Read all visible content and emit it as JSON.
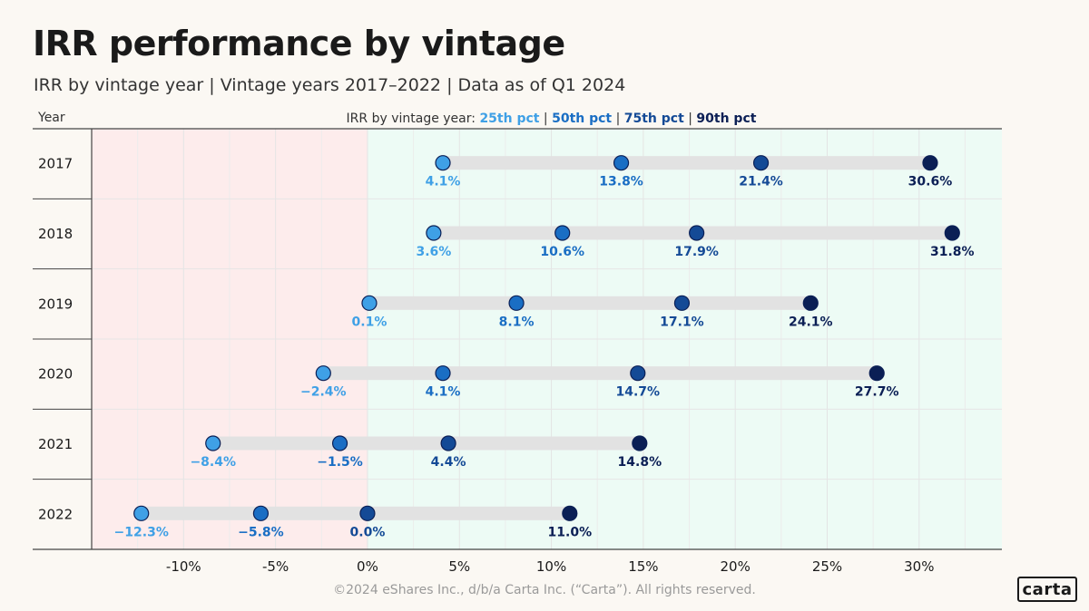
{
  "title": "IRR performance by vintage",
  "subtitle": "IRR by vintage year | Vintage years 2017–2022 | Data as of Q1 2024",
  "footer": "©2024 eShares Inc., d/b/a Carta Inc. (“Carta”). All rights reserved.",
  "logo_text": "carta",
  "colors": {
    "p25": "#3fa0e6",
    "p50": "#1a6ec4",
    "p75": "#144a96",
    "p90": "#0b1f55",
    "negative_zone": "#fdecec",
    "positive_zone": "#edfbf5",
    "range_bar": "#e2e2e2"
  },
  "chart_data": {
    "type": "scatter",
    "row_header": "Year",
    "legend": {
      "prefix": "IRR by vintage year:",
      "placement": "top-center",
      "entries": [
        "25th pct",
        "50th pct",
        "75th pct",
        "90th pct"
      ]
    },
    "x_ticks": [
      {
        "value": -10,
        "label": "-10%"
      },
      {
        "value": -5,
        "label": "-5%"
      },
      {
        "value": 0,
        "label": "0%"
      },
      {
        "value": 5,
        "label": "5%"
      },
      {
        "value": 10,
        "label": "10%"
      },
      {
        "value": 15,
        "label": "15%"
      },
      {
        "value": 20,
        "label": "20%"
      },
      {
        "value": 25,
        "label": "25%"
      },
      {
        "value": 30,
        "label": "30%"
      }
    ],
    "xlim": [
      -15,
      34.5
    ],
    "grid": true,
    "rows": [
      {
        "year": "2017",
        "values": [
          4.1,
          13.8,
          21.4,
          30.6
        ],
        "labels": [
          "4.1%",
          "13.8%",
          "21.4%",
          "30.6%"
        ]
      },
      {
        "year": "2018",
        "values": [
          3.6,
          10.6,
          17.9,
          31.8
        ],
        "labels": [
          "3.6%",
          "10.6%",
          "17.9%",
          "31.8%"
        ]
      },
      {
        "year": "2019",
        "values": [
          0.1,
          8.1,
          17.1,
          24.1
        ],
        "labels": [
          "0.1%",
          "8.1%",
          "17.1%",
          "24.1%"
        ]
      },
      {
        "year": "2020",
        "values": [
          -2.4,
          4.1,
          14.7,
          27.7
        ],
        "labels": [
          "−2.4%",
          "4.1%",
          "14.7%",
          "27.7%"
        ]
      },
      {
        "year": "2021",
        "values": [
          -8.4,
          -1.5,
          4.4,
          14.8
        ],
        "labels": [
          "−8.4%",
          "−1.5%",
          "4.4%",
          "14.8%"
        ]
      },
      {
        "year": "2022",
        "values": [
          -12.3,
          -5.8,
          0.0,
          11.0
        ],
        "labels": [
          "−12.3%",
          "−5.8%",
          "0.0%",
          "11.0%"
        ]
      }
    ]
  }
}
